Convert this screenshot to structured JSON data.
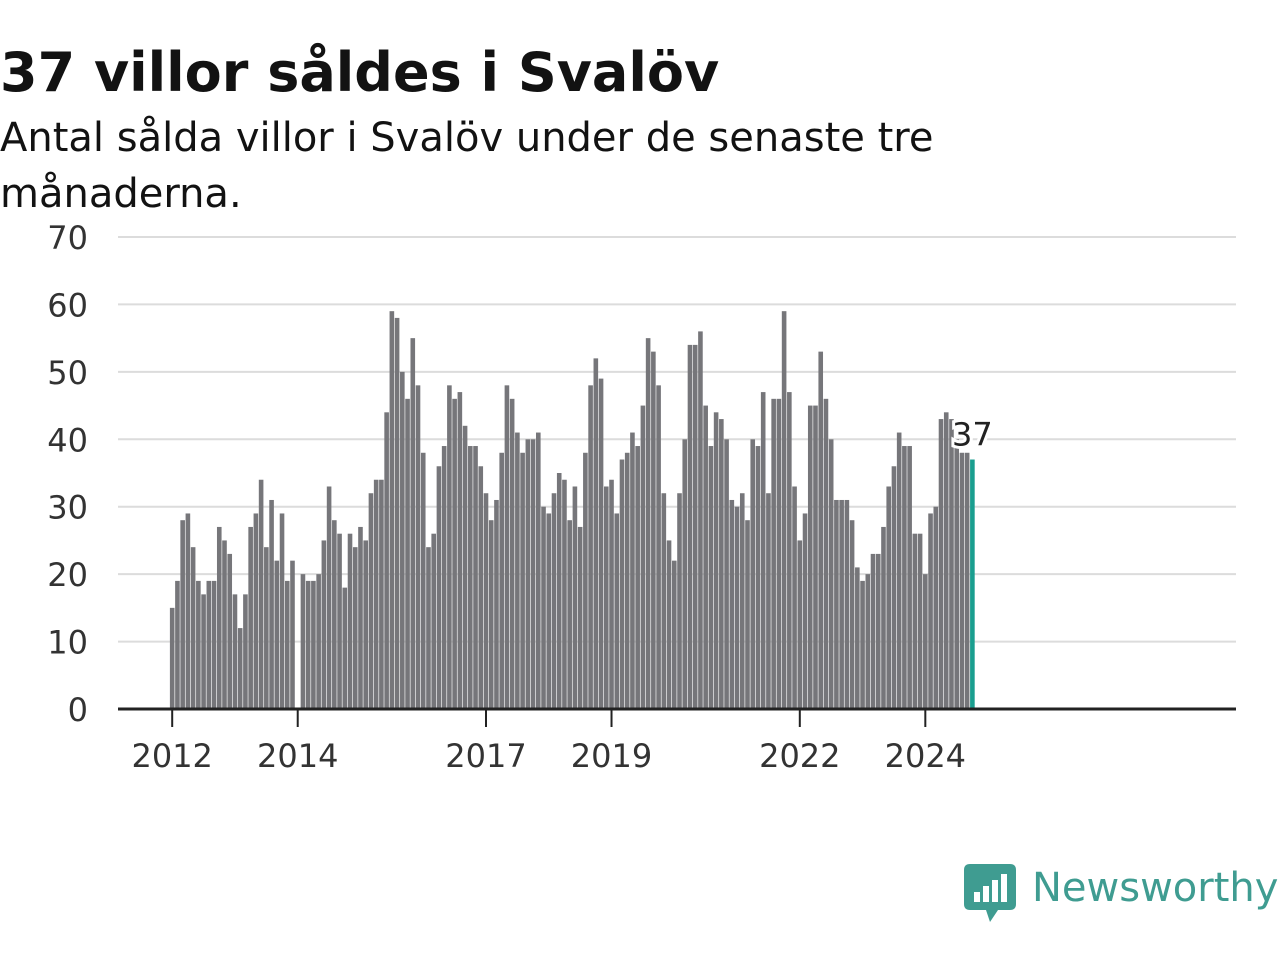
{
  "header": {
    "title": "37 villor såldes i Svalöv",
    "subtitle": "Antal sålda villor i Svalöv under de senaste tre månaderna."
  },
  "brand": {
    "name": "Newsworthy",
    "icon": "newsworthy-logo-icon",
    "color": "#3f9c91"
  },
  "chart_data": {
    "type": "bar",
    "title": "37 villor såldes i Svalöv",
    "subtitle": "Antal sålda villor i Svalöv under de senaste tre månaderna.",
    "xlabel": "",
    "ylabel": "",
    "ylim": [
      0,
      70
    ],
    "yticks": [
      "0",
      "10",
      "20",
      "30",
      "40",
      "50",
      "60",
      "70"
    ],
    "xticks": [
      {
        "label": "2012",
        "month": "2012-01"
      },
      {
        "label": "2014",
        "month": "2014-01"
      },
      {
        "label": "2017",
        "month": "2017-01"
      },
      {
        "label": "2019",
        "month": "2019-01"
      },
      {
        "label": "2022",
        "month": "2022-01"
      },
      {
        "label": "2024",
        "month": "2024-01"
      }
    ],
    "grid": true,
    "bar_color": "#76767a",
    "highlight_color": "#1a9e8f",
    "first_month": "2012-01",
    "last_month": "2024-10",
    "values": [
      15,
      19,
      28,
      29,
      24,
      19,
      17,
      19,
      19,
      27,
      25,
      23,
      17,
      12,
      17,
      27,
      29,
      34,
      24,
      31,
      22,
      29,
      19,
      22,
      null,
      20,
      19,
      19,
      20,
      25,
      33,
      28,
      26,
      18,
      26,
      24,
      27,
      25,
      32,
      34,
      34,
      44,
      59,
      58,
      50,
      46,
      55,
      48,
      38,
      24,
      26,
      36,
      39,
      48,
      46,
      47,
      42,
      39,
      39,
      36,
      32,
      28,
      31,
      38,
      48,
      46,
      41,
      38,
      40,
      40,
      41,
      30,
      29,
      32,
      35,
      34,
      28,
      33,
      27,
      38,
      48,
      52,
      49,
      33,
      34,
      29,
      37,
      38,
      41,
      39,
      45,
      55,
      53,
      48,
      32,
      25,
      22,
      32,
      40,
      54,
      54,
      56,
      45,
      39,
      44,
      43,
      40,
      31,
      30,
      32,
      28,
      40,
      39,
      47,
      32,
      46,
      46,
      59,
      47,
      33,
      25,
      29,
      45,
      45,
      53,
      46,
      40,
      31,
      31,
      31,
      28,
      21,
      19,
      20,
      23,
      23,
      27,
      33,
      36,
      41,
      39,
      39,
      26,
      26,
      20,
      29,
      30,
      43,
      44,
      43,
      40,
      38,
      38,
      37
    ],
    "annotation": {
      "label": "37",
      "month": "2024-10",
      "value": 37
    }
  }
}
